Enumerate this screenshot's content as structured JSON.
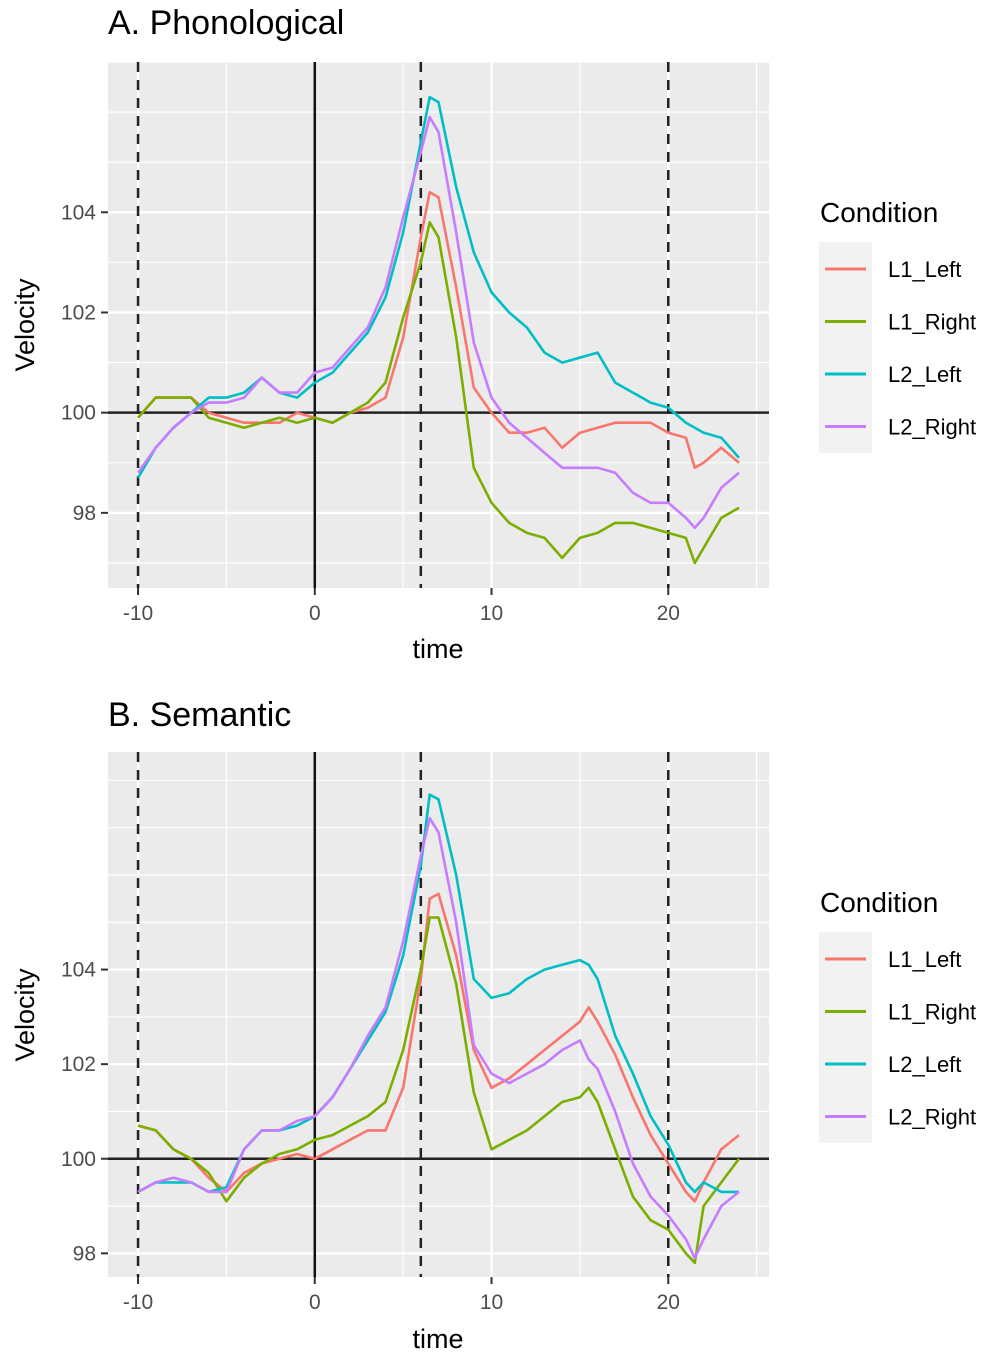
{
  "figure": {
    "legend_title": "Condition",
    "x_axis_label": "time",
    "y_axis_label": "Velocity",
    "series_colors": {
      "L1_Left": "#F8766D",
      "L1_Right": "#7CAE00",
      "L2_Left": "#00BFC4",
      "L2_Right": "#C77CFF"
    },
    "panel_background": "#EBEBEB",
    "grid_color": "#FFFFFF"
  },
  "chart_data": [
    {
      "type": "line",
      "title": "A. Phonological",
      "xlabel": "time",
      "ylabel": "Velocity",
      "xlim": [
        -11.7,
        25.7
      ],
      "ylim": [
        96.5,
        107.0
      ],
      "x_ticks": [
        -10,
        0,
        10,
        20
      ],
      "x_tick_labels": [
        "-10",
        "0",
        "10",
        "20"
      ],
      "y_ticks": [
        98,
        100,
        102,
        104
      ],
      "y_tick_labels": [
        "98",
        "100",
        "102",
        "104"
      ],
      "grid": true,
      "legend": "right",
      "reference_lines": {
        "vertical_solid": [
          0
        ],
        "vertical_dashed": [
          -10,
          6,
          20
        ],
        "horizontal_solid": [
          100
        ]
      },
      "x": [
        -10,
        -9,
        -8,
        -7,
        -6,
        -5,
        -4,
        -3,
        -2,
        -1,
        0,
        1,
        2,
        3,
        4,
        5,
        6,
        6.5,
        7,
        8,
        9,
        10,
        11,
        12,
        13,
        14,
        15,
        16,
        17,
        18,
        19,
        20,
        21,
        21.5,
        22,
        23,
        24
      ],
      "series": [
        {
          "name": "L1_Left",
          "values": [
            99.9,
            100.3,
            100.3,
            100.3,
            100.0,
            99.9,
            99.8,
            99.8,
            99.8,
            100.0,
            99.9,
            99.8,
            100.0,
            100.1,
            100.3,
            101.5,
            103.5,
            104.4,
            104.3,
            102.5,
            100.5,
            100.0,
            99.6,
            99.6,
            99.7,
            99.3,
            99.6,
            99.7,
            99.8,
            99.8,
            99.8,
            99.6,
            99.5,
            98.9,
            99.0,
            99.3,
            99.0
          ]
        },
        {
          "name": "L1_Right",
          "values": [
            99.9,
            100.3,
            100.3,
            100.3,
            99.9,
            99.8,
            99.7,
            99.8,
            99.9,
            99.8,
            99.9,
            99.8,
            100.0,
            100.2,
            100.6,
            101.9,
            103.0,
            103.8,
            103.5,
            101.5,
            98.9,
            98.2,
            97.8,
            97.6,
            97.5,
            97.1,
            97.5,
            97.6,
            97.8,
            97.8,
            97.7,
            97.6,
            97.5,
            97.0,
            97.3,
            97.9,
            98.1
          ]
        },
        {
          "name": "L2_Left",
          "values": [
            98.7,
            99.3,
            99.7,
            100.0,
            100.3,
            100.3,
            100.4,
            100.7,
            100.4,
            100.3,
            100.6,
            100.8,
            101.2,
            101.6,
            102.3,
            103.6,
            105.4,
            106.3,
            106.2,
            104.5,
            103.2,
            102.4,
            102.0,
            101.7,
            101.2,
            101.0,
            101.1,
            101.2,
            100.6,
            100.4,
            100.2,
            100.1,
            99.8,
            99.7,
            99.6,
            99.5,
            99.1
          ]
        },
        {
          "name": "L2_Right",
          "values": [
            98.8,
            99.3,
            99.7,
            100.0,
            100.2,
            100.2,
            100.3,
            100.7,
            100.4,
            100.4,
            100.8,
            100.9,
            101.3,
            101.7,
            102.5,
            103.9,
            105.2,
            105.9,
            105.6,
            103.6,
            101.4,
            100.3,
            99.8,
            99.5,
            99.2,
            98.9,
            98.9,
            98.9,
            98.8,
            98.4,
            98.2,
            98.2,
            97.9,
            97.7,
            97.9,
            98.5,
            98.8
          ]
        }
      ]
    },
    {
      "type": "line",
      "title": "B. Semantic",
      "xlabel": "time",
      "ylabel": "Velocity",
      "xlim": [
        -11.7,
        25.7
      ],
      "ylim": [
        97.5,
        108.6
      ],
      "x_ticks": [
        -10,
        0,
        10,
        20
      ],
      "x_tick_labels": [
        "-10",
        "0",
        "10",
        "20"
      ],
      "y_ticks": [
        98,
        100,
        102,
        104
      ],
      "y_tick_labels": [
        "98",
        "100",
        "102",
        "104"
      ],
      "grid": true,
      "legend": "right",
      "reference_lines": {
        "vertical_solid": [
          0
        ],
        "vertical_dashed": [
          -10,
          6,
          20
        ],
        "horizontal_solid": [
          100
        ]
      },
      "x": [
        -10,
        -9,
        -8,
        -7,
        -6,
        -5,
        -4,
        -3,
        -2,
        -1,
        0,
        1,
        2,
        3,
        4,
        5,
        6,
        6.5,
        7,
        8,
        9,
        10,
        11,
        12,
        13,
        14,
        15,
        15.5,
        16,
        17,
        18,
        19,
        20,
        21,
        21.5,
        22,
        23,
        24
      ],
      "series": [
        {
          "name": "L1_Left",
          "values": [
            100.7,
            100.6,
            100.2,
            100.0,
            99.6,
            99.3,
            99.7,
            99.9,
            100.0,
            100.1,
            100.0,
            100.2,
            100.4,
            100.6,
            100.6,
            101.5,
            103.8,
            105.5,
            105.6,
            104.3,
            102.3,
            101.5,
            101.7,
            102.0,
            102.3,
            102.6,
            102.9,
            103.2,
            102.9,
            102.2,
            101.3,
            100.5,
            99.9,
            99.3,
            99.1,
            99.5,
            100.2,
            100.5
          ]
        },
        {
          "name": "L1_Right",
          "values": [
            100.7,
            100.6,
            100.2,
            100.0,
            99.7,
            99.1,
            99.6,
            99.9,
            100.1,
            100.2,
            100.4,
            100.5,
            100.7,
            100.9,
            101.2,
            102.3,
            104.0,
            105.1,
            105.1,
            103.7,
            101.4,
            100.2,
            100.4,
            100.6,
            100.9,
            101.2,
            101.3,
            101.5,
            101.2,
            100.2,
            99.2,
            98.7,
            98.5,
            98.0,
            97.8,
            99.0,
            99.5,
            100.0
          ]
        },
        {
          "name": "L2_Left",
          "values": [
            99.3,
            99.5,
            99.5,
            99.5,
            99.3,
            99.4,
            100.2,
            100.6,
            100.6,
            100.7,
            100.9,
            101.3,
            101.9,
            102.5,
            103.1,
            104.3,
            106.2,
            107.7,
            107.6,
            106.0,
            103.8,
            103.4,
            103.5,
            103.8,
            104.0,
            104.1,
            104.2,
            104.1,
            103.8,
            102.6,
            101.8,
            100.9,
            100.3,
            99.5,
            99.3,
            99.5,
            99.3,
            99.3
          ]
        },
        {
          "name": "L2_Right",
          "values": [
            99.3,
            99.5,
            99.6,
            99.5,
            99.3,
            99.3,
            100.2,
            100.6,
            100.6,
            100.8,
            100.9,
            101.3,
            101.9,
            102.6,
            103.2,
            104.6,
            106.4,
            107.2,
            106.9,
            105.0,
            102.4,
            101.8,
            101.6,
            101.8,
            102.0,
            102.3,
            102.5,
            102.1,
            101.9,
            101.0,
            99.9,
            99.2,
            98.8,
            98.3,
            97.9,
            98.3,
            99.0,
            99.3
          ]
        }
      ]
    }
  ],
  "legends": [
    {
      "title": "Condition",
      "items": [
        "L1_Left",
        "L1_Right",
        "L2_Left",
        "L2_Right"
      ]
    },
    {
      "title": "Condition",
      "items": [
        "L1_Left",
        "L1_Right",
        "L2_Left",
        "L2_Right"
      ]
    }
  ]
}
